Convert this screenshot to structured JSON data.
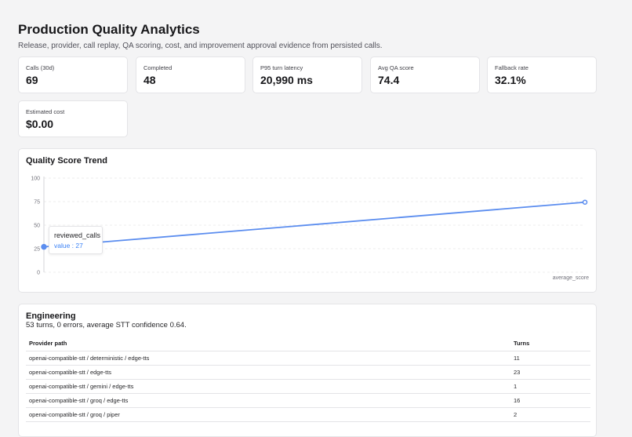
{
  "header": {
    "title": "Production Quality Analytics",
    "subtitle": "Release, provider, call replay, QA scoring, cost, and improvement approval evidence from persisted calls."
  },
  "metrics": [
    {
      "label": "Calls (30d)",
      "value": "69"
    },
    {
      "label": "Completed",
      "value": "48"
    },
    {
      "label": "P95 turn latency",
      "value": "20,990 ms"
    },
    {
      "label": "Avg QA score",
      "value": "74.4"
    },
    {
      "label": "Fallback rate",
      "value": "32.1%"
    },
    {
      "label": "Estimated cost",
      "value": "$0.00"
    }
  ],
  "trend": {
    "title": "Quality Score Trend",
    "tooltip": {
      "name": "reviewed_calls",
      "value": "value : 27"
    }
  },
  "chart_data": {
    "type": "line",
    "title": "Quality Score Trend",
    "categories": [
      "reviewed_calls",
      "average_score"
    ],
    "series": [
      {
        "values": [
          27,
          74.4
        ]
      }
    ],
    "ylim": [
      0,
      100
    ],
    "yticks": [
      "0",
      "25",
      "50",
      "75",
      "100"
    ],
    "grid": true,
    "line_color": "#5b8def"
  },
  "engineering": {
    "title": "Engineering",
    "summary": "53 turns, 0 errors, average STT confidence 0.64.",
    "columns": [
      "Provider path",
      "Turns"
    ],
    "rows": [
      [
        "openai-compatible-stt / deterministic / edge-tts",
        "11"
      ],
      [
        "openai-compatible-stt / edge-tts",
        "23"
      ],
      [
        "openai-compatible-stt / gemini / edge-tts",
        "1"
      ],
      [
        "openai-compatible-stt / groq / edge-tts",
        "16"
      ],
      [
        "openai-compatible-stt / groq / piper",
        "2"
      ]
    ]
  }
}
